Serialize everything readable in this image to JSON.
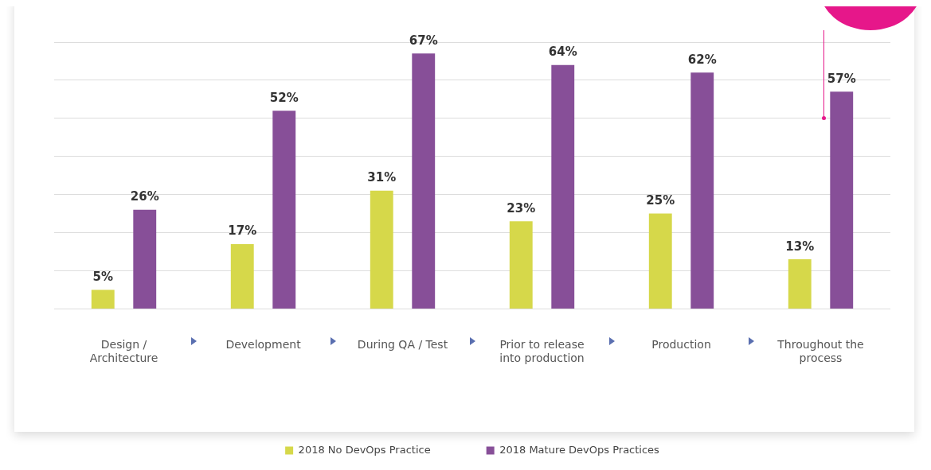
{
  "chart_data": {
    "type": "bar",
    "categories": [
      "Design / Architecture",
      "Development",
      "During QA / Test",
      "Prior to release into production",
      "Production",
      "Throughout the process"
    ],
    "series": [
      {
        "name": "2018 No DevOps Practice",
        "color": "#d6d84a",
        "values": [
          5,
          17,
          31,
          23,
          25,
          13
        ],
        "value_labels": [
          "5%",
          "17%",
          "31%",
          "23%",
          "25%",
          "13%"
        ]
      },
      {
        "name": "2018 Mature DevOps Practices",
        "color": "#874f98",
        "values": [
          26,
          52,
          67,
          64,
          62,
          57
        ],
        "value_labels": [
          "26%",
          "52%",
          "67%",
          "64%",
          "62%",
          "57%"
        ]
      }
    ],
    "grid": "y",
    "tick_labels": "x",
    "legend": "bottom"
  }
}
